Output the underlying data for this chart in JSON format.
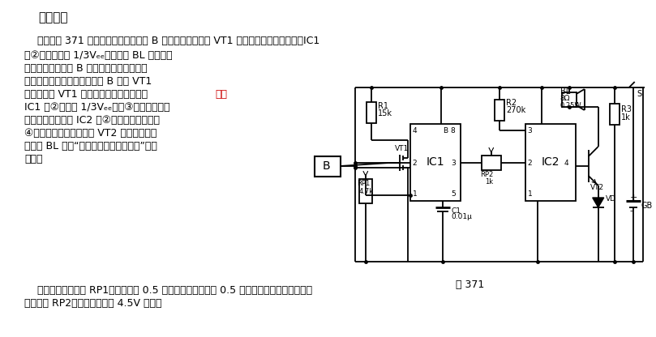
{
  "title": "工作原理",
  "line0": "    电路如图 371 所示，无人接近感应片 B 时，场效应晶体管 VT1 漏、源极间电阱呼低阱，IC1",
  "line1": "的②脚电位高于 1/3Vₑₑ，扬声器 BL 不报警；",
  "line2": "当有人接近感应片 B 的有效距离时，人体感",
  "line3": "应的杂波信号就会通过感应片 B 加到 VT1",
  "line4_pre": "的栅极，使 VT1 的漏、源间电阱增大，而",
  "line4_red": "导致",
  "line5": "IC1 的②脚低于 1/3Vₑₑ，则③脚输出高电位",
  "line6": "去触发语言集成片 IC2 的②脚，使其工作，由",
  "line7": "④脚输出的信号经三极管 VT2 放大后，驱动",
  "line8": "扬声器 BL 发出“有电危险，请勿靠近！”的警",
  "line9": "语声。",
  "line10": "    其中，调整电位器 RP1，要求离开 0.5 米以外应不报警，在 0.5 米以内应报警，同时配合调",
  "line11": "整电位器 RP2，使输出电压在 4.5V 左右。",
  "fig_label": "图 371",
  "bg_color": "#ffffff",
  "text_color": "#1a1a1a",
  "red_color": "#cc0000"
}
